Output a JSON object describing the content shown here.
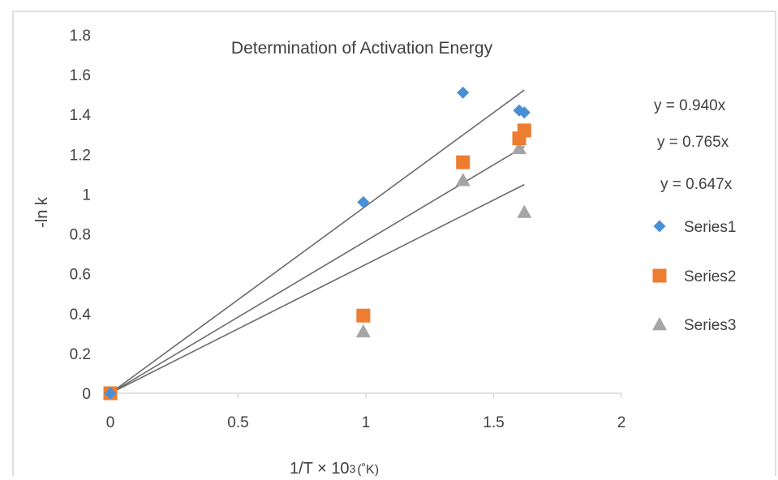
{
  "chart_data": {
    "type": "scatter",
    "title": "Determination of Activation Energy",
    "xlabel": "1/T × 10",
    "xlabel_sup": "3",
    "xlabel_unit": "(˚K)",
    "ylabel": "-ln k",
    "xlim": [
      0,
      2
    ],
    "ylim": [
      0,
      1.8
    ],
    "x_ticks": [
      "0",
      "0.5",
      "1",
      "1.5",
      "2"
    ],
    "y_ticks": [
      "0",
      "0.2",
      "0.4",
      "0.6",
      "0.8",
      "1",
      "1.2",
      "1.4",
      "1.6",
      "1.8"
    ],
    "grid": false,
    "legend_position": "right",
    "series": [
      {
        "name": "Series1",
        "marker": "diamond",
        "color": "#4a8fd4",
        "points": [
          [
            0,
            0
          ],
          [
            0.99,
            0.96
          ],
          [
            1.38,
            1.51
          ],
          [
            1.6,
            1.42
          ],
          [
            1.62,
            1.41
          ]
        ],
        "trendline": {
          "equation": "y = 0.940x",
          "slope": 0.94,
          "x_end": 1.62
        }
      },
      {
        "name": "Series2",
        "marker": "square",
        "color": "#ed7d31",
        "points": [
          [
            0,
            0
          ],
          [
            0.99,
            0.39
          ],
          [
            1.38,
            1.16
          ],
          [
            1.6,
            1.28
          ],
          [
            1.62,
            1.32
          ]
        ],
        "trendline": {
          "equation": "y = 0.765x",
          "slope": 0.765,
          "x_end": 1.62
        }
      },
      {
        "name": "Series3",
        "marker": "triangle",
        "color": "#a5a5a5",
        "points": [
          [
            0,
            0
          ],
          [
            0.99,
            0.31
          ],
          [
            1.38,
            1.07
          ],
          [
            1.6,
            1.23
          ],
          [
            1.62,
            0.91
          ]
        ],
        "trendline": {
          "equation": "y = 0.647x",
          "slope": 0.647,
          "x_end": 1.62
        }
      }
    ],
    "trendline_color": "#6b6b6b",
    "axis_color": "#d9d9d9",
    "frame_color": "#bfbfbf"
  }
}
